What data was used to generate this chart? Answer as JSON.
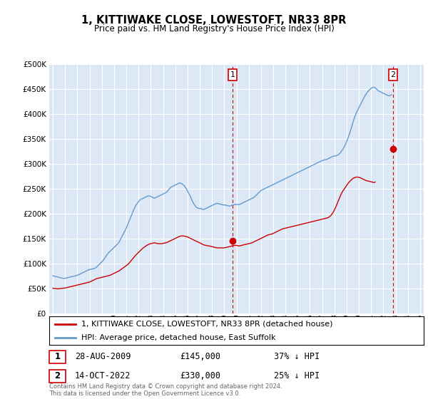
{
  "title": "1, KITTIWAKE CLOSE, LOWESTOFT, NR33 8PR",
  "subtitle": "Price paid vs. HM Land Registry's House Price Index (HPI)",
  "property_label": "1, KITTIWAKE CLOSE, LOWESTOFT, NR33 8PR (detached house)",
  "hpi_label": "HPI: Average price, detached house, East Suffolk",
  "footer": "Contains HM Land Registry data © Crown copyright and database right 2024.\nThis data is licensed under the Open Government Licence v3.0.",
  "transactions": [
    {
      "num": 1,
      "date": "28-AUG-2009",
      "price": 145000,
      "pct": "37% ↓ HPI",
      "year": 2009.67
    },
    {
      "num": 2,
      "date": "14-OCT-2022",
      "price": 330000,
      "pct": "25% ↓ HPI",
      "year": 2022.79
    }
  ],
  "ylim": [
    0,
    500000
  ],
  "yticks": [
    0,
    50000,
    100000,
    150000,
    200000,
    250000,
    300000,
    350000,
    400000,
    450000,
    500000
  ],
  "xlim": [
    1994.7,
    2025.3
  ],
  "bg_color": "#dce8f5",
  "red_color": "#cc0000",
  "blue_color": "#6699cc",
  "grid_color": "#ffffff",
  "hpi_monthly": [
    75000,
    74500,
    74000,
    73500,
    73000,
    72500,
    72000,
    71500,
    71000,
    70500,
    70000,
    69800,
    70000,
    70500,
    71000,
    71500,
    72000,
    72500,
    73000,
    73500,
    74000,
    74500,
    75000,
    75500,
    76000,
    77000,
    78000,
    79000,
    80000,
    81000,
    82000,
    83000,
    84000,
    85000,
    86000,
    87000,
    87500,
    88000,
    88500,
    89000,
    89500,
    90000,
    91000,
    93000,
    95000,
    97000,
    99000,
    101000,
    103000,
    105000,
    108000,
    111000,
    114000,
    117000,
    120000,
    122000,
    124000,
    126000,
    128000,
    130000,
    132000,
    134000,
    136000,
    138000,
    140000,
    143000,
    147000,
    151000,
    155000,
    159000,
    163000,
    167000,
    171000,
    176000,
    181000,
    186000,
    191000,
    196000,
    201000,
    206000,
    211000,
    215000,
    218000,
    221000,
    224000,
    226000,
    228000,
    229000,
    230000,
    231000,
    232000,
    233000,
    234000,
    235000,
    235000,
    235000,
    234000,
    233000,
    232000,
    231000,
    231000,
    232000,
    233000,
    234000,
    235000,
    236000,
    237000,
    238000,
    239000,
    240000,
    241000,
    242000,
    244000,
    246000,
    249000,
    251000,
    253000,
    254000,
    255000,
    256000,
    257000,
    258000,
    259000,
    260000,
    261000,
    261000,
    260000,
    259000,
    257000,
    255000,
    252000,
    249000,
    245000,
    241000,
    237000,
    233000,
    228000,
    224000,
    220000,
    217000,
    214000,
    212000,
    211000,
    210000,
    210000,
    210000,
    209000,
    208000,
    208000,
    209000,
    210000,
    211000,
    212000,
    213000,
    214000,
    215000,
    216000,
    217000,
    218000,
    219000,
    220000,
    220000,
    220000,
    219000,
    219000,
    218000,
    218000,
    217000,
    217000,
    217000,
    216000,
    216000,
    215000,
    215000,
    215000,
    216000,
    217000,
    217000,
    218000,
    218000,
    218000,
    218000,
    218000,
    218000,
    219000,
    220000,
    221000,
    222000,
    223000,
    224000,
    225000,
    226000,
    227000,
    228000,
    229000,
    230000,
    231000,
    232000,
    234000,
    236000,
    238000,
    240000,
    242000,
    244000,
    246000,
    247000,
    248000,
    249000,
    250000,
    251000,
    252000,
    253000,
    254000,
    255000,
    256000,
    257000,
    258000,
    259000,
    260000,
    261000,
    262000,
    263000,
    264000,
    265000,
    266000,
    267000,
    268000,
    269000,
    270000,
    271000,
    272000,
    273000,
    274000,
    275000,
    276000,
    277000,
    278000,
    279000,
    280000,
    281000,
    282000,
    283000,
    284000,
    285000,
    286000,
    287000,
    288000,
    289000,
    290000,
    291000,
    292000,
    293000,
    294000,
    295000,
    296000,
    297000,
    298000,
    299000,
    300000,
    301000,
    302000,
    303000,
    304000,
    305000,
    306000,
    307000,
    307000,
    308000,
    308000,
    309000,
    310000,
    311000,
    312000,
    313000,
    314000,
    315000,
    315000,
    315000,
    316000,
    317000,
    318000,
    320000,
    322000,
    325000,
    328000,
    331000,
    335000,
    339000,
    344000,
    349000,
    355000,
    361000,
    367000,
    374000,
    381000,
    388000,
    394000,
    399000,
    404000,
    408000,
    412000,
    416000,
    420000,
    424000,
    428000,
    432000,
    436000,
    439000,
    442000,
    445000,
    447000,
    449000,
    451000,
    452000,
    453000,
    453000,
    452000,
    450000,
    448000,
    446000,
    445000,
    444000,
    443000,
    442000,
    441000,
    440000,
    439000,
    438000,
    437000,
    436000,
    436000,
    437000,
    438000
  ],
  "prop_monthly": [
    50000,
    49800,
    49600,
    49400,
    49200,
    49000,
    49200,
    49400,
    49600,
    49800,
    50000,
    50200,
    50500,
    51000,
    51500,
    52000,
    52500,
    53000,
    53500,
    54000,
    54500,
    55000,
    55500,
    56000,
    56500,
    57000,
    57500,
    58000,
    58500,
    59000,
    59500,
    60000,
    60500,
    61000,
    61500,
    62000,
    62500,
    63500,
    64500,
    65500,
    66500,
    67500,
    68500,
    69500,
    70000,
    70500,
    71000,
    71500,
    72000,
    72500,
    73000,
    73500,
    74000,
    74500,
    75000,
    75500,
    76000,
    77000,
    78000,
    79000,
    80000,
    81000,
    82000,
    83000,
    84000,
    85000,
    86500,
    88000,
    89500,
    91000,
    92500,
    94000,
    95500,
    97000,
    99000,
    101000,
    103500,
    106000,
    108500,
    111000,
    113500,
    116000,
    118000,
    120000,
    122000,
    124000,
    126000,
    128000,
    130000,
    131500,
    133000,
    134500,
    136000,
    137000,
    138000,
    139000,
    139500,
    140000,
    140500,
    141000,
    141000,
    140500,
    140000,
    139500,
    139500,
    139500,
    139500,
    139500,
    140000,
    140500,
    141000,
    141500,
    142000,
    143000,
    144000,
    145000,
    146000,
    147000,
    148000,
    149000,
    150000,
    151000,
    152000,
    153000,
    154000,
    154500,
    155000,
    155000,
    155000,
    154500,
    154000,
    153500,
    153000,
    152000,
    151000,
    150000,
    149000,
    148000,
    147000,
    146000,
    145000,
    144000,
    143000,
    142000,
    141000,
    140000,
    139000,
    138000,
    137000,
    136500,
    136000,
    135500,
    135000,
    135000,
    134500,
    134000,
    133500,
    133000,
    132500,
    132000,
    131500,
    131000,
    131000,
    131000,
    131000,
    131000,
    131000,
    131000,
    131000,
    131500,
    132000,
    132500,
    133000,
    133500,
    134000,
    134500,
    135000,
    135500,
    136000,
    136000,
    136000,
    135500,
    135000,
    135000,
    135500,
    136000,
    136500,
    137000,
    137500,
    138000,
    138500,
    139000,
    139500,
    140000,
    140500,
    141000,
    142000,
    143000,
    144000,
    145000,
    146000,
    147000,
    148000,
    149000,
    150000,
    151000,
    152000,
    153000,
    154000,
    155000,
    156000,
    157000,
    157500,
    158000,
    158500,
    159000,
    160000,
    161000,
    162000,
    163000,
    164000,
    165000,
    166000,
    167000,
    168000,
    169000,
    169500,
    170000,
    170500,
    171000,
    171500,
    172000,
    172500,
    173000,
    173500,
    174000,
    174500,
    175000,
    175500,
    176000,
    176500,
    177000,
    177500,
    178000,
    178500,
    179000,
    179500,
    180000,
    180500,
    181000,
    181500,
    182000,
    182500,
    183000,
    183500,
    184000,
    184500,
    185000,
    185500,
    186000,
    186500,
    187000,
    187500,
    188000,
    188500,
    189000,
    189500,
    190000,
    190500,
    191000,
    192000,
    193000,
    195000,
    197000,
    200000,
    203000,
    207000,
    211000,
    216000,
    221000,
    226000,
    231000,
    236000,
    240000,
    244000,
    247000,
    250000,
    253000,
    256000,
    259000,
    262000,
    264000,
    266000,
    268000,
    270000,
    271000,
    272000,
    272500,
    273000,
    273000,
    272500,
    272000,
    271000,
    270000,
    269000,
    268000,
    267000,
    266000,
    265500,
    265000,
    264500,
    264000,
    263500,
    263000,
    262500,
    262000,
    263000
  ]
}
